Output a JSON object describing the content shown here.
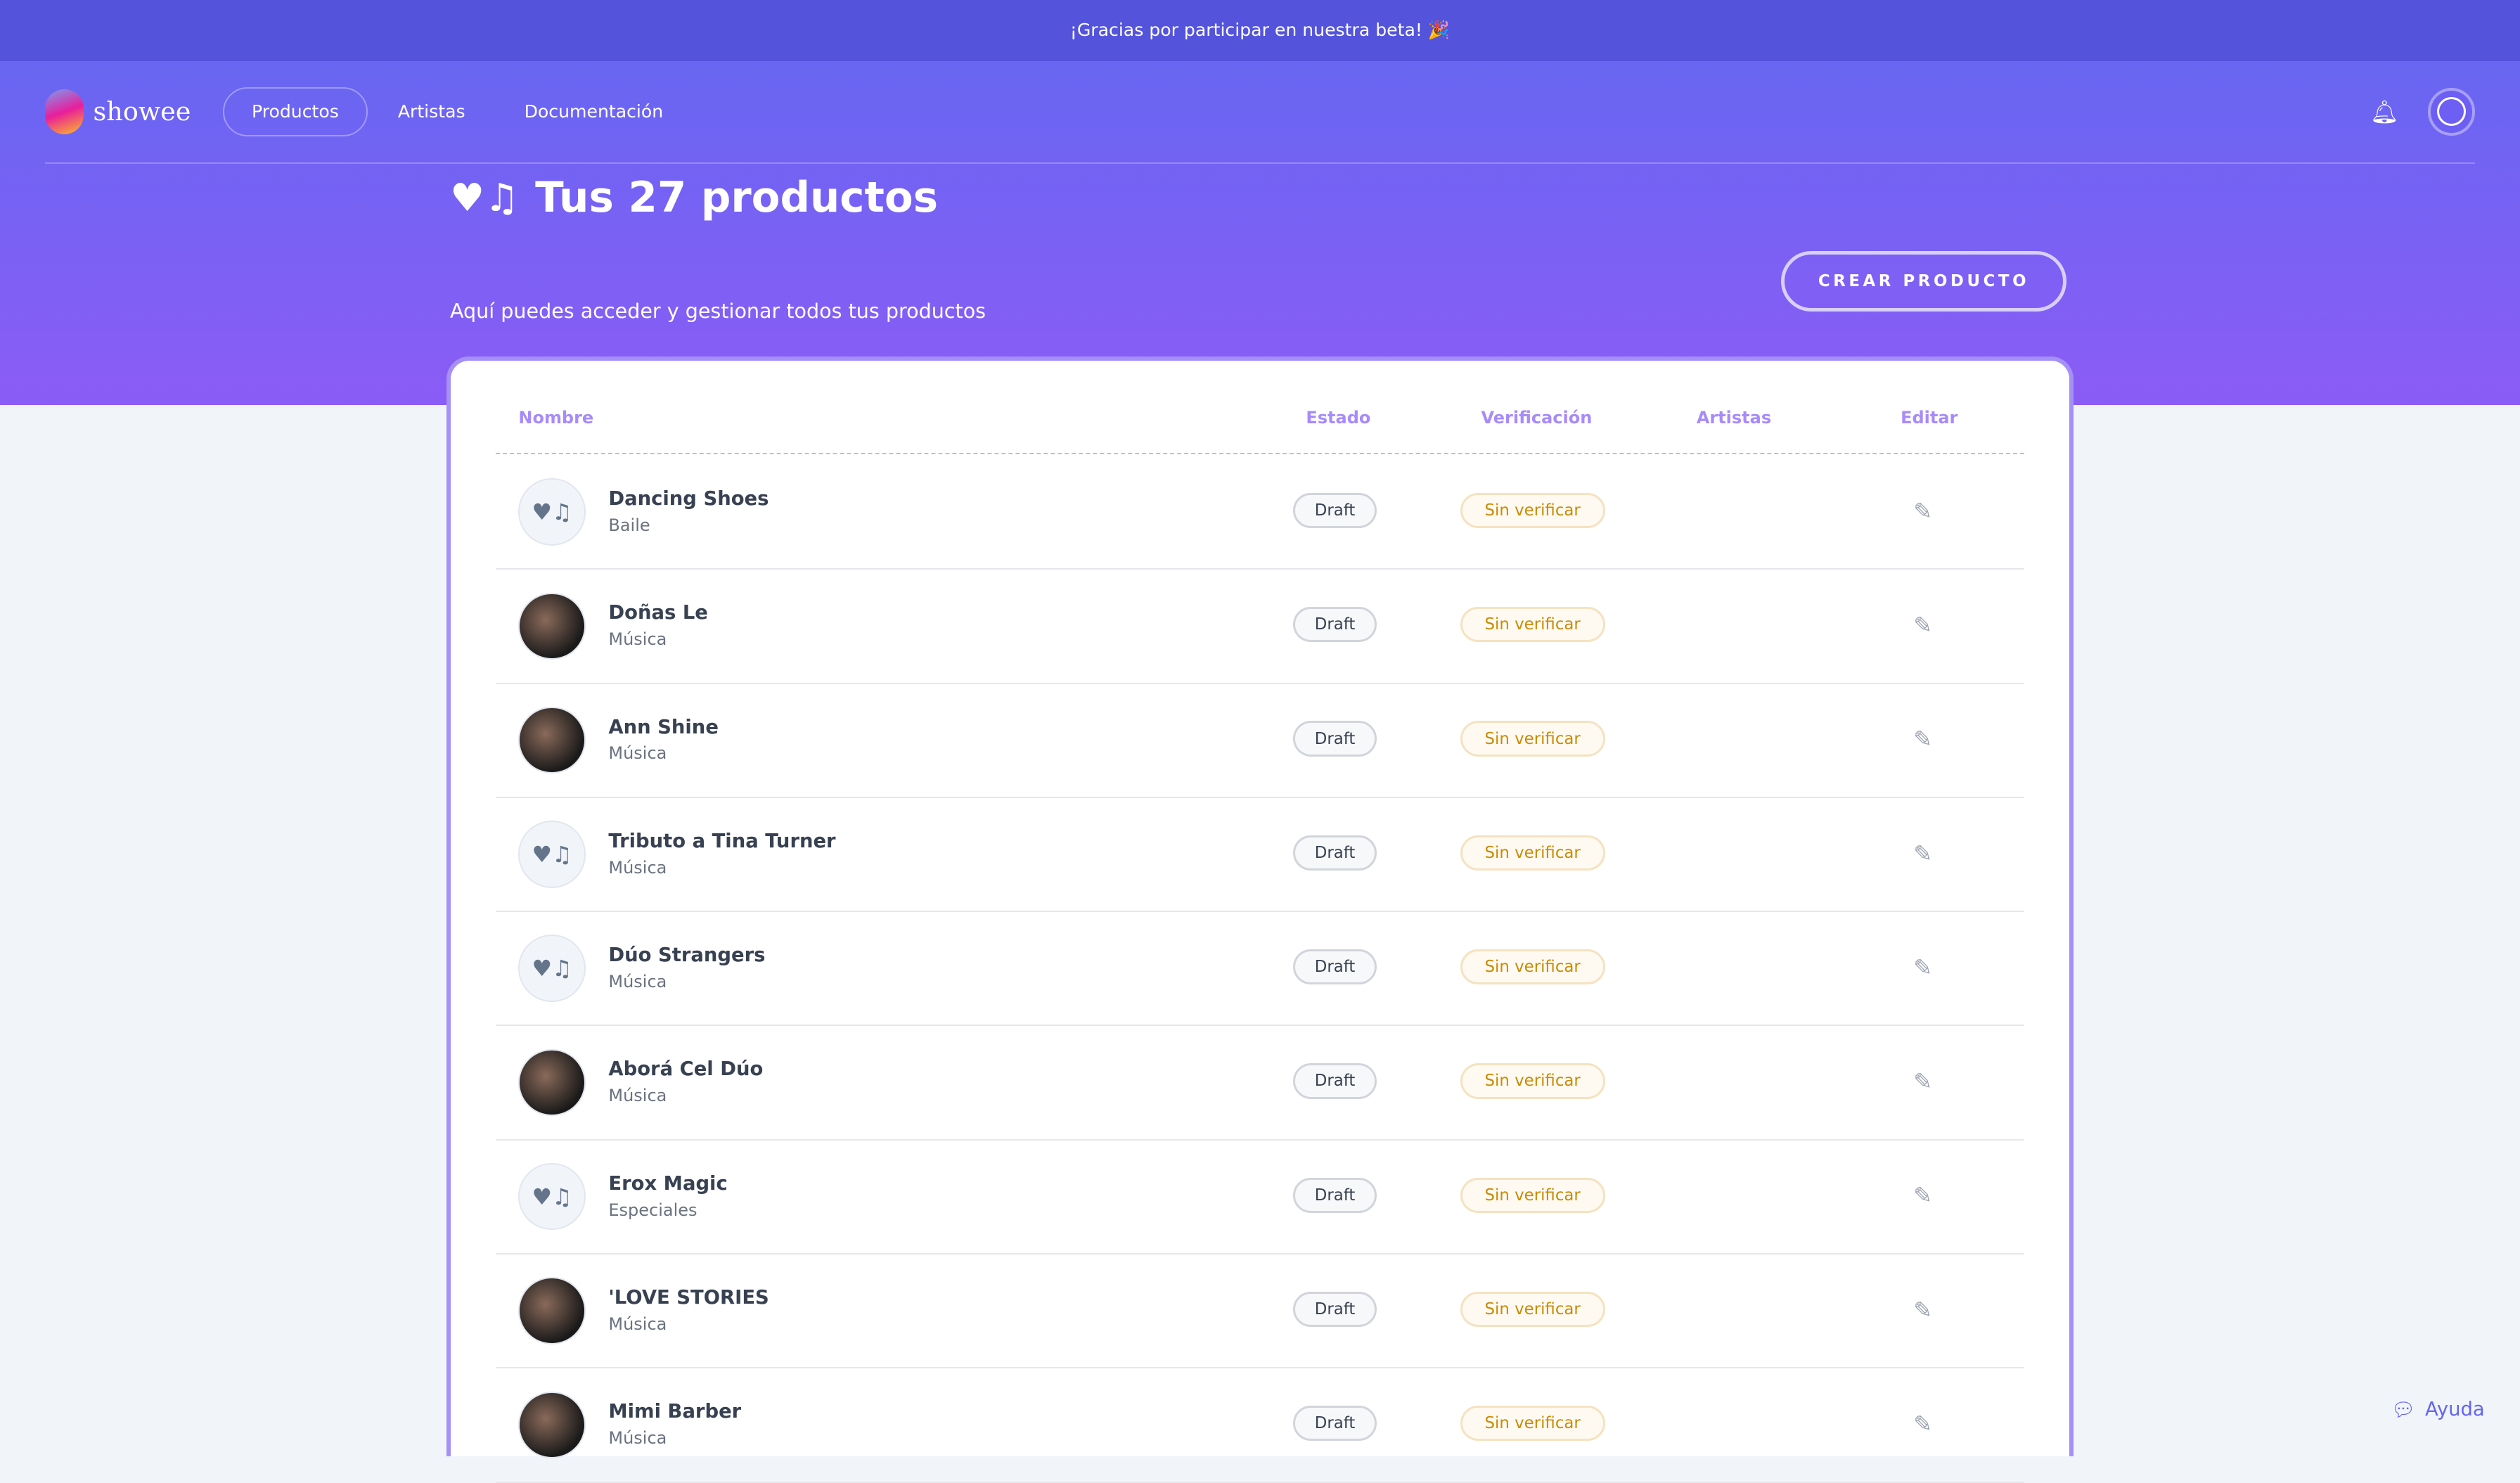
{
  "banner": {
    "text": "¡Gracias por participar en nuestra beta! 🎉"
  },
  "nav": {
    "logo": "showee",
    "links": [
      {
        "label": "Productos",
        "active": true
      },
      {
        "label": "Artistas"
      },
      {
        "label": "Documentación"
      }
    ],
    "icons": [
      "bell-icon",
      "user-icon"
    ]
  },
  "header": {
    "title": "Tus 27 productos",
    "subtitle": "Aquí puedes acceder y gestionar todos tus productos",
    "create_button": "CREAR PRODUCTO"
  },
  "colors": {
    "banner": "#5353dc",
    "hero_start": "#6866f2",
    "hero_end": "#8b5cf6",
    "header_text": "#a78bfa",
    "verify": "#ca8a04"
  },
  "table": {
    "columns": [
      "Nombre",
      "Estado",
      "Verificación",
      "Artistas",
      "Editar"
    ],
    "rows": [
      {
        "name": "Dancing Shoes",
        "category": "Baile",
        "status": "Draft",
        "verification": "Sin verificar",
        "image": "placeholder"
      },
      {
        "name": "Doñas Le",
        "category": "Música",
        "status": "Draft",
        "verification": "Sin verificar",
        "image": "photo"
      },
      {
        "name": "Ann Shine",
        "category": "Música",
        "status": "Draft",
        "verification": "Sin verificar",
        "image": "photo"
      },
      {
        "name": "Tributo a Tina Turner",
        "category": "Música",
        "status": "Draft",
        "verification": "Sin verificar",
        "image": "placeholder"
      },
      {
        "name": "Dúo Strangers",
        "category": "Música",
        "status": "Draft",
        "verification": "Sin verificar",
        "image": "placeholder"
      },
      {
        "name": "Aborá Cel Dúo",
        "category": "Música",
        "status": "Draft",
        "verification": "Sin verificar",
        "image": "photo"
      },
      {
        "name": "Erox Magic",
        "category": "Especiales",
        "status": "Draft",
        "verification": "Sin verificar",
        "image": "placeholder"
      },
      {
        "name": "'LOVE STORIES",
        "category": "Música",
        "status": "Draft",
        "verification": "Sin verificar",
        "image": "photo"
      },
      {
        "name": "Mimi Barber",
        "category": "Música",
        "status": "Draft",
        "verification": "Sin verificar",
        "image": "photo"
      }
    ]
  },
  "help": {
    "label": "Ayuda"
  }
}
